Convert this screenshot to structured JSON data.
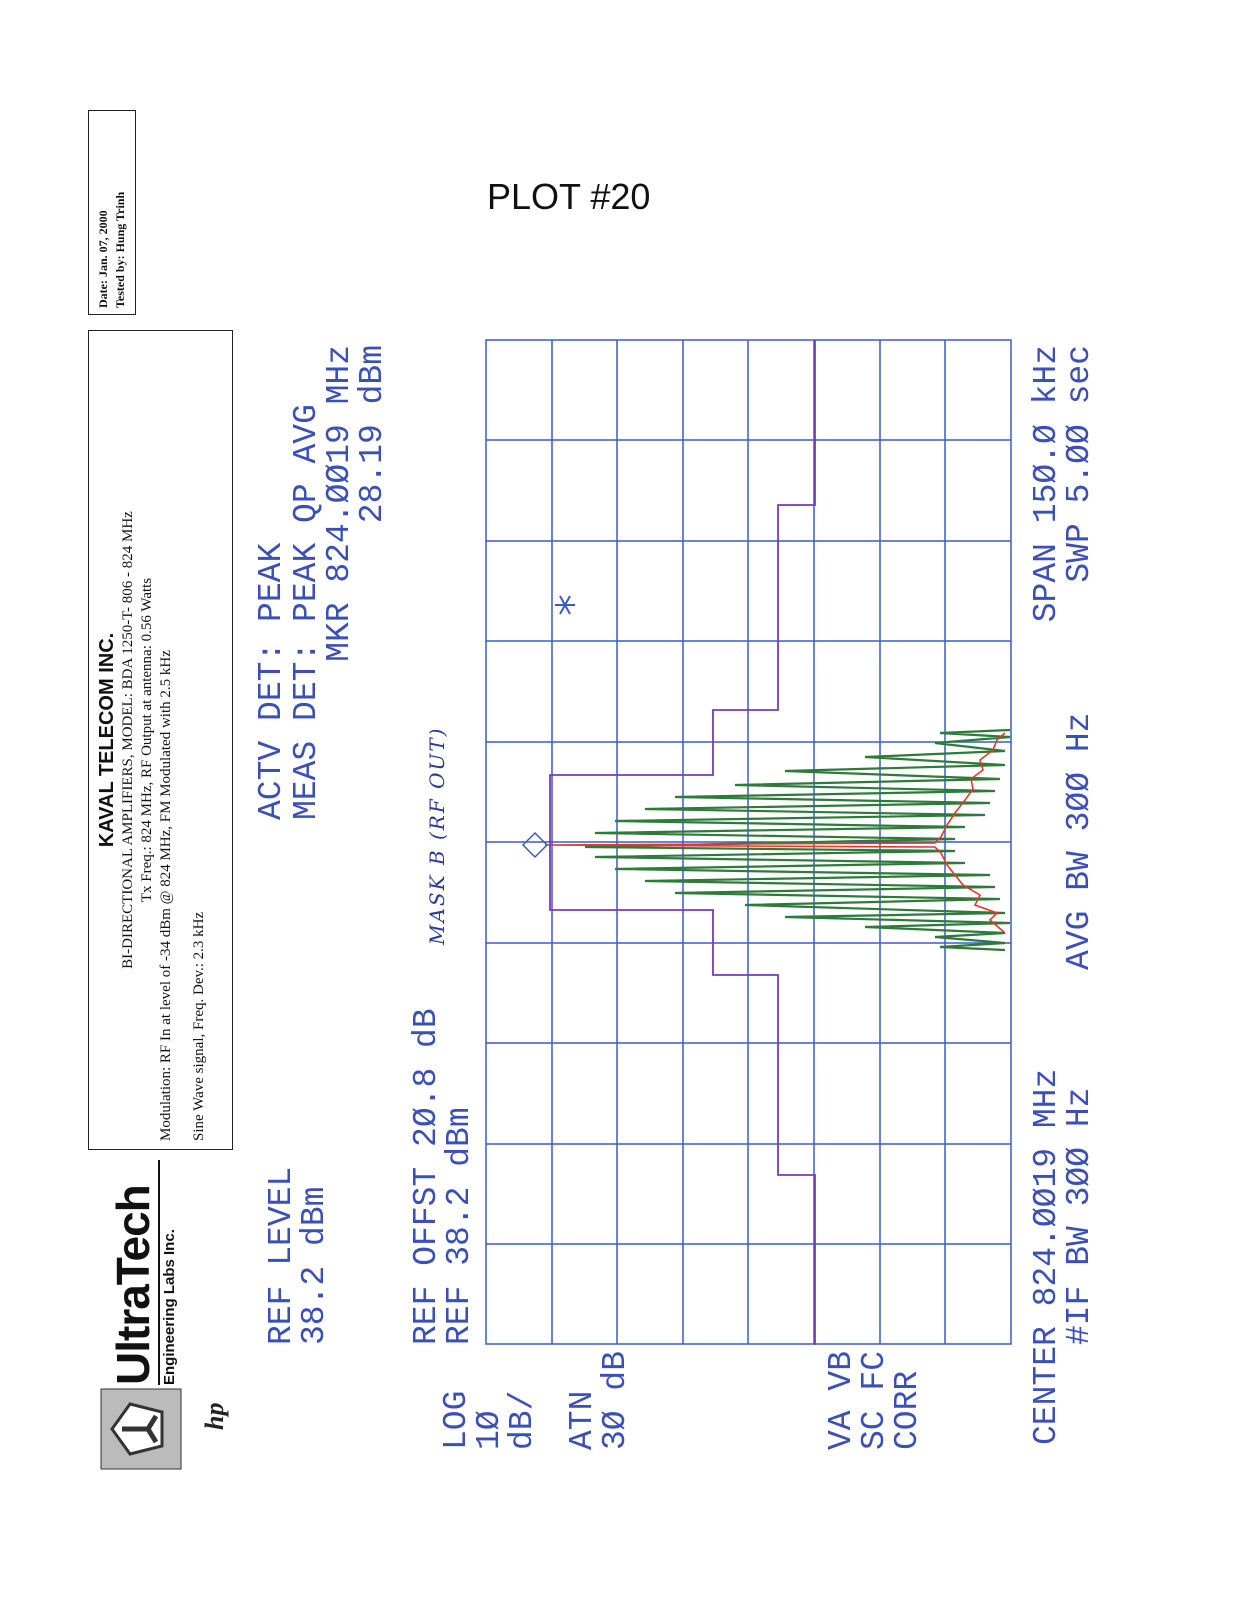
{
  "date_box": {
    "date": "Date: Jan. 07, 2000",
    "tested_by": "Tested by: Hung Trinh"
  },
  "plot_title": "PLOT #20",
  "logo": {
    "name": "UltraTech",
    "subtitle": "Engineering Labs Inc.",
    "mark": "hp"
  },
  "header": {
    "company": "KAVAL TELECOM INC.",
    "lines": [
      "BI-DIRECTIONAL AMPLIFIERS, MODEL: BDA 1250-T- 806 - 824 MHz",
      "Tx Freq.: 824 MHz, RF Output at antenna: 0.56 Watts",
      "Modulation: RF In at level of -34 dBm @ 824 MHz, FM Modulated with 2.5 kHz",
      "Sine Wave signal, Freq. Dev.: 2.3 kHz"
    ]
  },
  "analyzer": {
    "ref_level": [
      "REF LEVEL",
      "38.2 dBm"
    ],
    "detector": [
      "ACTV DET: PEAK",
      "MEAS DET: PEAK QP AVG",
      "MKR 824.ØØ19 MHz",
      "28.19 dBm"
    ],
    "ref_offset": [
      "REF OFFST 2Ø.8 dB",
      "REF 38.2 dBm"
    ],
    "mask_note": "MASK B (RF OUT)",
    "scale": [
      "LOG",
      "1Ø",
      "dB/",
      "ATN",
      "3Ø dB"
    ],
    "flags": [
      "VA VB",
      "SC FC",
      "CORR"
    ],
    "center": [
      "CENTER 824.ØØ19 MHz",
      "#IF BW 3ØØ Hz"
    ],
    "avg_bw": "AVG BW 3ØØ Hz",
    "span": [
      "SPAN 15Ø.Ø kHz",
      "SWP 5.ØØ sec"
    ]
  }
}
